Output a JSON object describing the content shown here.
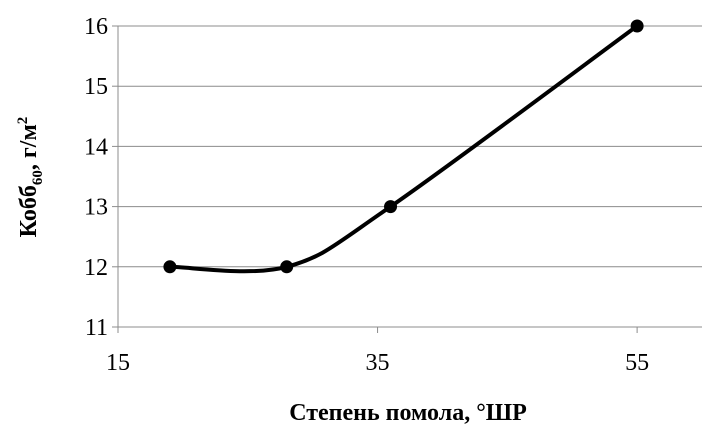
{
  "chart_data": {
    "type": "line",
    "smooth": true,
    "x": [
      19,
      28,
      36,
      55
    ],
    "series": [
      {
        "values": [
          12,
          12,
          13,
          16
        ],
        "color": "#000000",
        "marker": "circle"
      }
    ],
    "xlim": [
      15,
      60
    ],
    "ylim": [
      11,
      16
    ],
    "x_ticks": [
      15,
      35,
      55
    ],
    "y_ticks": [
      11,
      12,
      13,
      14,
      15,
      16
    ],
    "x_tick_labels": [
      "15",
      "35",
      "55"
    ],
    "y_tick_labels": [
      "11",
      "12",
      "13",
      "14",
      "15",
      "16"
    ],
    "xlabel": "Степень помола, °ШР",
    "ylabel_main": "Кобб",
    "ylabel_sub": "60",
    "ylabel_unit": ", г/м",
    "ylabel_sup": "2",
    "grid": "horizontal",
    "legend": "none"
  }
}
